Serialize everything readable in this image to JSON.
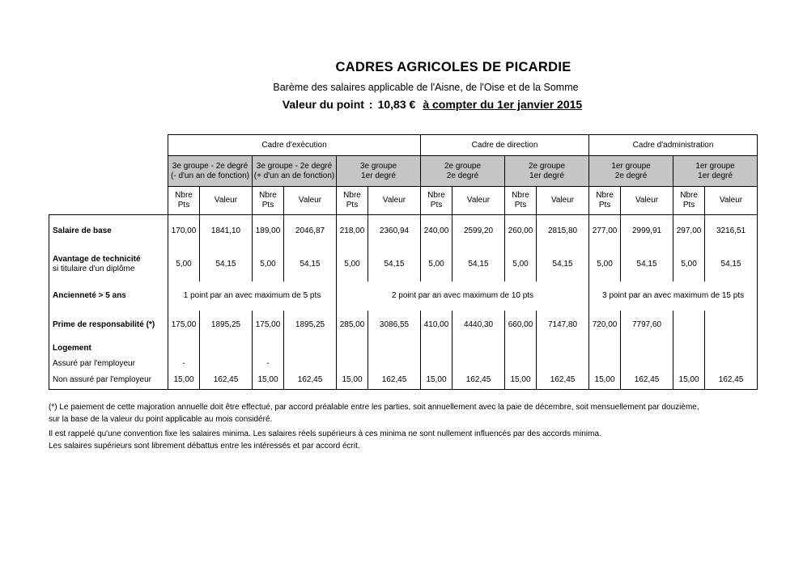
{
  "doc": {
    "title": "CADRES AGRICOLES DE PICARDIE",
    "subtitle": "Barème des salaires applicable de l'Aisne, de l'Oise et de la Somme",
    "point_line": {
      "prefix": "Valeur du point",
      "colon": ":",
      "value": "10,83 €",
      "underlined": "à compter du 1er janvier 2015"
    }
  },
  "table": {
    "points_label": [
      "Nbre",
      "Pts"
    ],
    "value_label": "Valeur",
    "header_gray": "#c5c5c5",
    "sections": [
      {
        "label": "Cadre d'exécution",
        "groups": [
          {
            "lines": [
              "3e groupe - 2e degré",
              "(- d'un an de fonction)"
            ]
          },
          {
            "lines": [
              "3e groupe - 2e degré",
              "(+ d'un an de fonction)"
            ]
          },
          {
            "lines": [
              "3e groupe",
              "1er degré"
            ]
          }
        ]
      },
      {
        "label": "Cadre de direction",
        "groups": [
          {
            "lines": [
              "2e groupe",
              "2e degré"
            ]
          },
          {
            "lines": [
              "2e groupe",
              "1er degré"
            ]
          }
        ]
      },
      {
        "label": "Cadre d'administration",
        "groups": [
          {
            "lines": [
              "1er groupe",
              "2e degré"
            ]
          },
          {
            "lines": [
              "1er groupe",
              "1er degré"
            ]
          }
        ]
      }
    ],
    "rows": [
      {
        "name": "salaire",
        "label": [
          {
            "t": "Salaire de base",
            "b": true
          }
        ],
        "cells": [
          {
            "t": "170,00"
          },
          {
            "t": "1841,10"
          },
          {
            "t": "189,00"
          },
          {
            "t": "2046,87"
          },
          {
            "t": "218,00"
          },
          {
            "t": "2360,94"
          },
          {
            "t": "240,00"
          },
          {
            "t": "2599,20"
          },
          {
            "t": "260,00"
          },
          {
            "t": "2815,80"
          },
          {
            "t": "277,00"
          },
          {
            "t": "2999,91"
          },
          {
            "t": "297,00"
          },
          {
            "t": "3216,51"
          }
        ]
      },
      {
        "name": "avantage",
        "label": [
          {
            "t": "Avantage de technicité",
            "b": true
          },
          {
            "t": "si titulaire d'un diplôme",
            "b": false
          }
        ],
        "cells": [
          {
            "t": "5,00"
          },
          {
            "t": "54,15"
          },
          {
            "t": "5,00"
          },
          {
            "t": "54,15"
          },
          {
            "t": "5,00"
          },
          {
            "t": "54,15"
          },
          {
            "t": "5,00"
          },
          {
            "t": "54,15"
          },
          {
            "t": "5,00"
          },
          {
            "t": "54,15"
          },
          {
            "t": "5,00"
          },
          {
            "t": "54,15"
          },
          {
            "t": "5,00"
          },
          {
            "t": "54,15"
          }
        ]
      },
      {
        "name": "anciennete",
        "label": [
          {
            "t": "Ancienneté > 5 ans",
            "b": true
          }
        ],
        "cells": [
          {
            "t": "1 point par an avec maximum de 5 pts",
            "span": 4
          },
          {
            "t": "2 point par an avec maximum de 10 pts",
            "span": 6
          },
          {
            "t": "3 point par an avec maximum de 15 pts",
            "span": 4
          }
        ]
      },
      {
        "name": "prime",
        "label": [
          {
            "t": "Prime de responsabilité (*)",
            "b": true
          }
        ],
        "cells": [
          {
            "t": "175,00"
          },
          {
            "t": "1895,25"
          },
          {
            "t": "175,00"
          },
          {
            "t": "1895,25"
          },
          {
            "t": "285,00"
          },
          {
            "t": "3086,55"
          },
          {
            "t": "410,00"
          },
          {
            "t": "4440,30"
          },
          {
            "t": "660,00"
          },
          {
            "t": "7147,80"
          },
          {
            "t": "720,00"
          },
          {
            "t": "7797,60"
          },
          {
            "t": ""
          },
          {
            "t": ""
          }
        ]
      },
      {
        "name": "logement",
        "label": [
          {
            "t": "Logement",
            "b": true
          }
        ],
        "cells": [
          {
            "t": ""
          },
          {
            "t": ""
          },
          {
            "t": ""
          },
          {
            "t": ""
          },
          {
            "t": ""
          },
          {
            "t": ""
          },
          {
            "t": ""
          },
          {
            "t": ""
          },
          {
            "t": ""
          },
          {
            "t": ""
          },
          {
            "t": ""
          },
          {
            "t": ""
          },
          {
            "t": ""
          },
          {
            "t": ""
          }
        ]
      },
      {
        "name": "assure",
        "label": [
          {
            "t": "Assuré par l'employeur",
            "b": false
          }
        ],
        "cells": [
          {
            "t": "-"
          },
          {
            "t": ""
          },
          {
            "t": "-"
          },
          {
            "t": ""
          },
          {
            "t": ""
          },
          {
            "t": ""
          },
          {
            "t": ""
          },
          {
            "t": ""
          },
          {
            "t": ""
          },
          {
            "t": ""
          },
          {
            "t": ""
          },
          {
            "t": ""
          },
          {
            "t": ""
          },
          {
            "t": ""
          }
        ]
      },
      {
        "name": "nonassure",
        "label": [
          {
            "t": "Non assuré par l'employeur",
            "b": false
          }
        ],
        "cells": [
          {
            "t": "15,00"
          },
          {
            "t": "162,45"
          },
          {
            "t": "15,00"
          },
          {
            "t": "162,45"
          },
          {
            "t": "15,00"
          },
          {
            "t": "162,45"
          },
          {
            "t": "15,00"
          },
          {
            "t": "162,45"
          },
          {
            "t": "15,00"
          },
          {
            "t": "162,45"
          },
          {
            "t": "15,00"
          },
          {
            "t": "162,45"
          },
          {
            "t": "15,00"
          },
          {
            "t": "162,45"
          }
        ]
      }
    ]
  },
  "notes": {
    "note1_line1": "(*) Le paiement de cette majoration annuelle doit être effectué, par accord préalable entre les parties, soit annuellement avec la paie de décembre, soit mensuellement par douzième,",
    "note1_line2": "sur la base de la valeur du point applicable au mois considéré.",
    "note2_line1": "Il est rappelé qu'une convention fixe les salaires minima. Les salaires réels supérieurs à ces minima ne sont nullement influencés par des accords minima.",
    "note2_line2": "Les salaires supérieurs sont librement débattus entre les intéressés et par accord écrit."
  }
}
